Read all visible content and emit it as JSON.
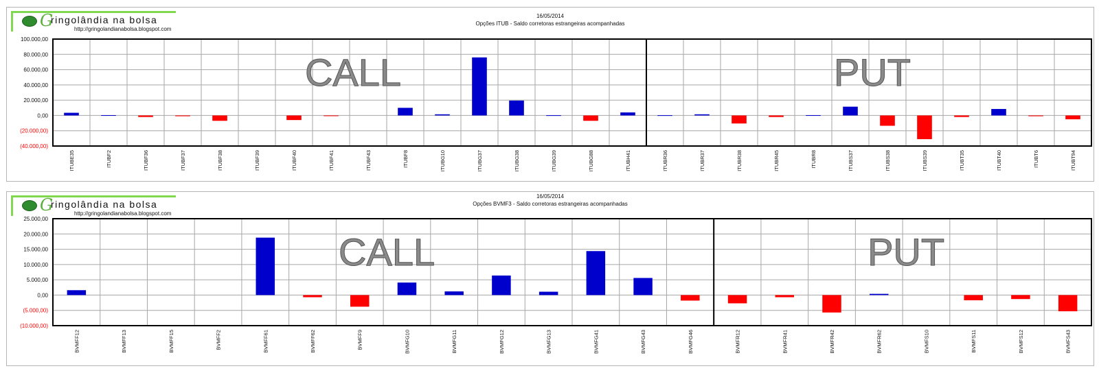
{
  "charts": [
    {
      "logo": {
        "name": "ringolândia na bolsa",
        "url": "http://gringolandianabolsa.blogspot.com",
        "initial": "G"
      },
      "date": "16/05/2014",
      "subtitle": "Opções  ITUB - Saldo corretoras estrangeiras acompanhadas",
      "labels": {
        "call": "CALL",
        "put": "PUT"
      },
      "colors": {
        "positive": "#0000cc",
        "negative": "#ff0000"
      }
    },
    {
      "logo": {
        "name": "ringolândia na bolsa",
        "url": "http://gringolandianabolsa.blogspot.com",
        "initial": "G"
      },
      "date": "16/05/2014",
      "subtitle": "Opções  BVMF3 - Saldo corretoras estrangeiras acompanhadas",
      "labels": {
        "call": "CALL",
        "put": "PUT"
      },
      "colors": {
        "positive": "#0000cc",
        "negative": "#ff0000"
      }
    }
  ],
  "chart_data": [
    {
      "type": "bar",
      "title": "Opções  ITUB - Saldo corretoras estrangeiras acompanhadas",
      "categories": [
        "ITUBE35",
        "ITUBF2",
        "ITUBF36",
        "ITUBF37",
        "ITUBF38",
        "ITUBF39",
        "ITUBF40",
        "ITUBF41",
        "ITUBF43",
        "ITUBF8",
        "ITUBG10",
        "ITUBG37",
        "ITUBG38",
        "ITUBG39",
        "ITUBG88",
        "ITUBH41",
        "ITUBR36",
        "ITUBR37",
        "ITUBR38",
        "ITUBR45",
        "ITUBR8",
        "ITUBS37",
        "ITUBS38",
        "ITUBS39",
        "ITUBT35",
        "ITUBT40",
        "ITUBT6",
        "ITUBT94"
      ],
      "values": [
        3500,
        400,
        -2000,
        -1000,
        -7000,
        0,
        -6000,
        -300,
        0,
        10000,
        1500,
        76000,
        19500,
        300,
        -7000,
        4000,
        300,
        1500,
        -10500,
        -2000,
        400,
        11500,
        -13500,
        -31000,
        -2000,
        8500,
        -1000,
        -5000
      ],
      "ylim": [
        -40000,
        100000
      ],
      "yticks": [
        -40000,
        -20000,
        0,
        20000,
        40000,
        60000,
        80000,
        100000
      ],
      "ytick_labels": [
        "(40.000,00)",
        "(20.000,00)",
        "0,00",
        "20.000,00",
        "40.000,00",
        "60.000,00",
        "80.000,00",
        "100.000,00"
      ],
      "divider_after": 16,
      "grid": true
    },
    {
      "type": "bar",
      "title": "Opções  BVMF3 - Saldo corretoras estrangeiras acompanhadas",
      "categories": [
        "BVMFF12",
        "BVMFF13",
        "BVMFF15",
        "BVMFF2",
        "BVMFF61",
        "BVMFF62",
        "BVMFF9",
        "BVMFG10",
        "BVMFG11",
        "BVMFG12",
        "BVMFG13",
        "BVMFG41",
        "BVMFG43",
        "BVMFG46",
        "BVMFR12",
        "BVMFR41",
        "BVMFR42",
        "BVMFR62",
        "BVMFS10",
        "BVMFS11",
        "BVMFS12",
        "BVMFS43"
      ],
      "values": [
        1600,
        0,
        0,
        0,
        18800,
        -700,
        -3800,
        4100,
        1200,
        6400,
        1100,
        14400,
        5600,
        -1800,
        -2700,
        -700,
        -5700,
        400,
        0,
        -1700,
        -1300,
        -5300
      ],
      "ylim": [
        -10000,
        25000
      ],
      "yticks": [
        -10000,
        -5000,
        0,
        5000,
        10000,
        15000,
        20000,
        25000
      ],
      "ytick_labels": [
        "(10.000,00)",
        "(5.000,00)",
        "0,00",
        "5.000,00",
        "10.000,00",
        "15.000,00",
        "20.000,00",
        "25.000,00"
      ],
      "divider_after": 14,
      "grid": true
    }
  ]
}
